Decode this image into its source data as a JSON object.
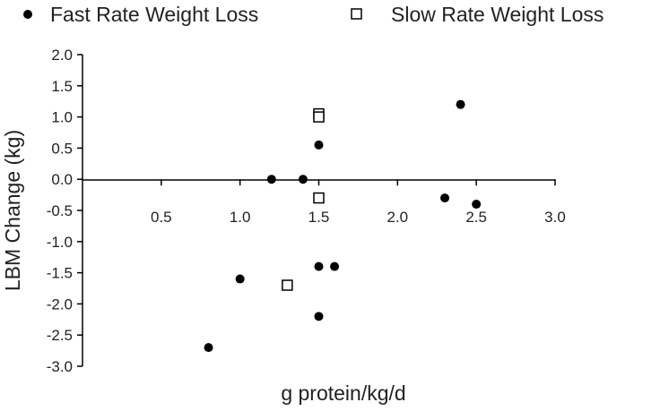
{
  "chart_data": {
    "type": "scatter",
    "title": "",
    "xlabel": "g protein/kg/d",
    "ylabel": "LBM Change (kg)",
    "xlim": [
      0,
      3.0
    ],
    "ylim": [
      -3.0,
      2.0
    ],
    "xticks": [
      "0.5",
      "1.0",
      "1.5",
      "2.0",
      "2.5",
      "3.0"
    ],
    "yticks": [
      "2.0",
      "1.5",
      "1.0",
      "0.5",
      "0.0",
      "-0.5",
      "-1.0",
      "-1.5",
      "-2.0",
      "-2.5",
      "-3.0"
    ],
    "grid": false,
    "legend_position": "top",
    "series": [
      {
        "name": "Fast Rate Weight Loss",
        "marker": "filled-circle",
        "color": "#000000",
        "points": [
          {
            "x": 0.8,
            "y": -2.7
          },
          {
            "x": 1.0,
            "y": -1.6
          },
          {
            "x": 1.2,
            "y": 0.0
          },
          {
            "x": 1.4,
            "y": 0.0
          },
          {
            "x": 1.5,
            "y": 0.55
          },
          {
            "x": 1.5,
            "y": -1.4
          },
          {
            "x": 1.5,
            "y": -2.2
          },
          {
            "x": 1.6,
            "y": -1.4
          },
          {
            "x": 2.3,
            "y": -0.3
          },
          {
            "x": 2.4,
            "y": 1.2
          },
          {
            "x": 2.5,
            "y": -0.4
          }
        ]
      },
      {
        "name": "Slow Rate Weight Loss",
        "marker": "open-square",
        "color": "#000000",
        "points": [
          {
            "x": 1.5,
            "y": 1.05
          },
          {
            "x": 1.5,
            "y": 1.0
          },
          {
            "x": 1.5,
            "y": -0.3
          },
          {
            "x": 1.3,
            "y": -1.7
          }
        ]
      }
    ]
  }
}
